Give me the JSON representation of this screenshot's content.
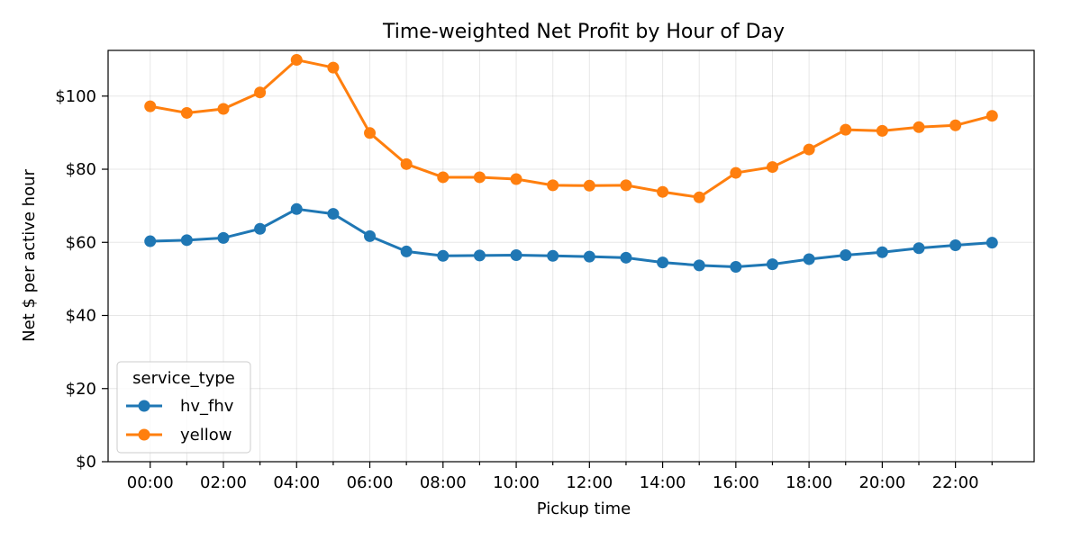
{
  "chart_data": {
    "type": "line",
    "title": "Time-weighted Net Profit by Hour of Day",
    "xlabel": "Pickup time",
    "ylabel": "Net $ per active hour",
    "x": [
      0,
      1,
      2,
      3,
      4,
      5,
      6,
      7,
      8,
      9,
      10,
      11,
      12,
      13,
      14,
      15,
      16,
      17,
      18,
      19,
      20,
      21,
      22,
      23
    ],
    "x_tick_values": [
      0,
      2,
      4,
      6,
      8,
      10,
      12,
      14,
      16,
      18,
      20,
      22
    ],
    "x_tick_labels": [
      "00:00",
      "02:00",
      "04:00",
      "06:00",
      "08:00",
      "10:00",
      "12:00",
      "14:00",
      "16:00",
      "18:00",
      "20:00",
      "22:00"
    ],
    "xlim": [
      -1.15,
      24.15
    ],
    "ylim": [
      0,
      112.5
    ],
    "y_ticks": [
      0,
      20,
      40,
      60,
      80,
      100
    ],
    "y_tick_labels": [
      "$0",
      "$20",
      "$40",
      "$60",
      "$80",
      "$100"
    ],
    "grid": true,
    "legend": {
      "title": "service_type",
      "position": "lower-left"
    },
    "series": [
      {
        "name": "hv_fhv",
        "color": "#1f77b4",
        "values": [
          60.3,
          60.6,
          61.2,
          63.7,
          69.1,
          67.8,
          61.7,
          57.5,
          56.3,
          56.4,
          56.5,
          56.3,
          56.1,
          55.8,
          54.5,
          53.7,
          53.3,
          54.0,
          55.4,
          56.5,
          57.3,
          58.4,
          59.2,
          59.9
        ]
      },
      {
        "name": "yellow",
        "color": "#ff7f0e",
        "values": [
          97.2,
          95.4,
          96.5,
          101.0,
          109.9,
          107.8,
          89.9,
          81.4,
          77.8,
          77.8,
          77.3,
          75.6,
          75.5,
          75.6,
          73.8,
          72.3,
          79.0,
          80.6,
          85.4,
          90.8,
          90.5,
          91.5,
          92.0,
          94.6
        ]
      }
    ]
  }
}
